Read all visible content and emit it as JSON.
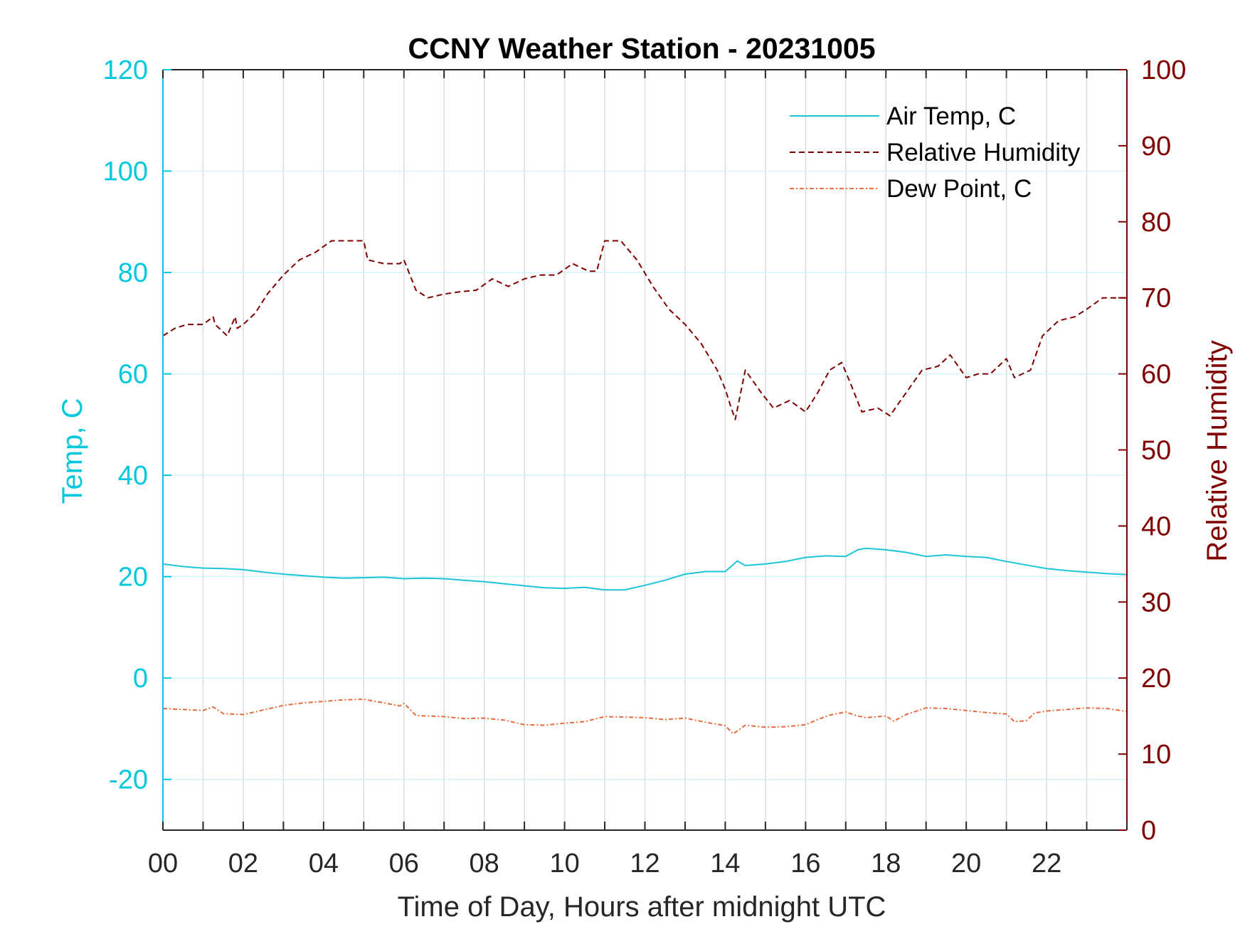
{
  "chart_data": {
    "type": "line",
    "title": "CCNY Weather Station - 20231005",
    "xlabel": "Time of Day, Hours after midnight UTC",
    "ylabel_left": "Temp, C",
    "ylabel_right": "Relative Humidity",
    "xlim": [
      0,
      24
    ],
    "ylim_left": [
      -30,
      120
    ],
    "ylim_right": [
      0,
      100
    ],
    "x_ticks": [
      "00",
      "02",
      "04",
      "06",
      "08",
      "10",
      "12",
      "14",
      "16",
      "18",
      "20",
      "22"
    ],
    "y_ticks_left": [
      "-20",
      "0",
      "20",
      "40",
      "60",
      "80",
      "100",
      "120"
    ],
    "y_ticks_right": [
      "0",
      "10",
      "20",
      "30",
      "40",
      "50",
      "60",
      "70",
      "80",
      "90",
      "100"
    ],
    "grid": true,
    "legend_position": "top-right",
    "colors": {
      "temp_axis": "#00c8dc",
      "rh_axis": "#800000",
      "temp_line": "#1cc4d8",
      "rh_line": "#800000",
      "dew_line": "#e8693a",
      "gridline": "#d6dde3",
      "hgrid_temp": "#d2f3f8"
    },
    "series": [
      {
        "name": "Air Temp, C",
        "axis": "left",
        "style": "solid",
        "x": [
          0,
          0.5,
          1,
          1.5,
          2,
          2.5,
          3,
          3.5,
          4,
          4.5,
          5,
          5.5,
          6,
          6.5,
          7,
          7.5,
          8,
          8.5,
          9,
          9.5,
          10,
          10.5,
          11,
          11.5,
          12,
          12.5,
          13,
          13.5,
          14,
          14.3,
          14.5,
          15,
          15.5,
          16,
          16.5,
          17,
          17.3,
          17.5,
          18,
          18.5,
          19,
          19.5,
          20,
          20.5,
          21,
          21.5,
          22,
          22.5,
          23,
          23.5,
          24
        ],
        "y": [
          22.5,
          22.0,
          21.7,
          21.6,
          21.4,
          20.9,
          20.5,
          20.2,
          19.9,
          19.7,
          19.8,
          19.9,
          19.6,
          19.7,
          19.6,
          19.3,
          19.0,
          18.6,
          18.2,
          17.8,
          17.7,
          17.9,
          17.4,
          17.4,
          18.3,
          19.3,
          20.5,
          21.0,
          21.0,
          23.1,
          22.2,
          22.5,
          23.0,
          23.8,
          24.1,
          24.0,
          25.3,
          25.6,
          25.3,
          24.8,
          24.0,
          24.3,
          24.0,
          23.8,
          23.0,
          22.3,
          21.6,
          21.2,
          20.9,
          20.6,
          20.4
        ]
      },
      {
        "name": "Relative Humidity",
        "axis": "right",
        "style": "dashed",
        "x": [
          0,
          0.3,
          0.6,
          1,
          1.25,
          1.3,
          1.6,
          1.8,
          1.85,
          2,
          2.3,
          2.6,
          3,
          3.4,
          3.8,
          4.2,
          4.6,
          5,
          5.1,
          5.5,
          5.9,
          6,
          6.3,
          6.6,
          7,
          7.4,
          7.8,
          8.2,
          8.6,
          9,
          9.4,
          9.8,
          10.2,
          10.6,
          10.8,
          11,
          11.4,
          11.8,
          12.2,
          12.6,
          13,
          13.4,
          13.8,
          14,
          14.15,
          14.25,
          14.5,
          14.9,
          15.2,
          15.6,
          16,
          16.3,
          16.6,
          16.9,
          17.1,
          17.4,
          17.8,
          18.1,
          18.5,
          18.9,
          19.3,
          19.6,
          20,
          20.3,
          20.6,
          20.9,
          21,
          21.2,
          21.6,
          21.9,
          22.3,
          22.7,
          23,
          23.4,
          23.7,
          24
        ],
        "y": [
          65,
          66,
          66.5,
          66.5,
          67.5,
          66.5,
          65,
          67.5,
          66,
          66.5,
          68,
          70.5,
          73,
          75,
          76,
          77.5,
          77.5,
          77.5,
          75,
          74.5,
          74.5,
          75,
          71,
          70,
          70.5,
          70.8,
          71,
          72.5,
          71.5,
          72.5,
          73,
          73,
          74.5,
          73.5,
          73.5,
          77.5,
          77.5,
          75,
          71.5,
          68.5,
          66.5,
          64,
          60.5,
          58,
          55.5,
          54,
          60.5,
          57.5,
          55.5,
          56.5,
          55,
          57.5,
          60.5,
          61.5,
          59,
          55,
          55.5,
          54.5,
          57.5,
          60.5,
          61,
          62.5,
          59.5,
          60,
          60,
          61.5,
          62,
          59.5,
          60.5,
          65,
          67,
          67.5,
          68.5,
          70,
          70,
          70
        ]
      },
      {
        "name": "Dew Point, C",
        "axis": "left",
        "style": "dash-dot",
        "x": [
          0,
          0.5,
          1,
          1.25,
          1.5,
          2,
          2.5,
          3,
          3.5,
          4,
          4.5,
          5,
          5.5,
          5.9,
          6,
          6.3,
          6.6,
          7,
          7.5,
          8,
          8.5,
          9,
          9.5,
          10,
          10.5,
          11,
          11.5,
          12,
          12.5,
          13,
          13.5,
          14,
          14.2,
          14.5,
          15,
          15.5,
          16,
          16.3,
          16.6,
          17,
          17.3,
          17.5,
          18,
          18.2,
          18.5,
          19,
          19.5,
          20,
          20.5,
          21,
          21.2,
          21.5,
          21.7,
          22,
          22.5,
          23,
          23.5,
          24
        ],
        "y": [
          -6,
          -6.2,
          -6.4,
          -5.7,
          -7.0,
          -7.2,
          -6.3,
          -5.4,
          -4.9,
          -4.6,
          -4.3,
          -4.2,
          -4.9,
          -5.5,
          -5.0,
          -7.4,
          -7.5,
          -7.6,
          -8.0,
          -7.9,
          -8.3,
          -9.2,
          -9.3,
          -8.9,
          -8.6,
          -7.6,
          -7.7,
          -7.8,
          -8.2,
          -7.9,
          -8.7,
          -9.4,
          -11.0,
          -9.3,
          -9.7,
          -9.6,
          -9.2,
          -8.2,
          -7.3,
          -6.7,
          -7.5,
          -7.8,
          -7.5,
          -8.5,
          -7.2,
          -5.9,
          -6.0,
          -6.4,
          -6.8,
          -7.1,
          -8.6,
          -8.4,
          -6.9,
          -6.5,
          -6.2,
          -5.9,
          -6.0,
          -6.6
        ]
      }
    ]
  }
}
